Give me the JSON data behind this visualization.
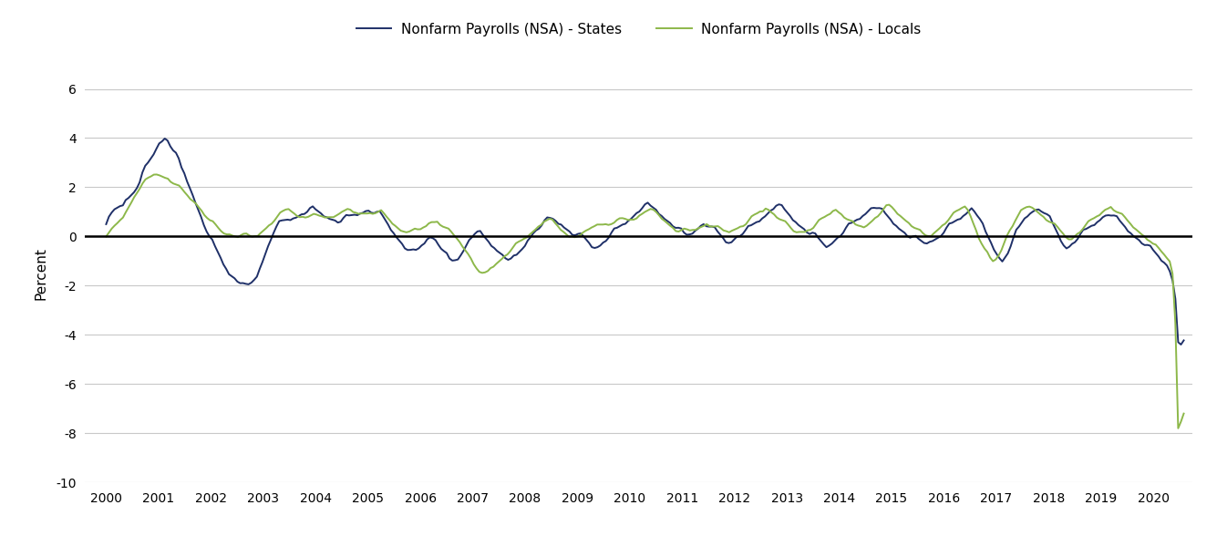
{
  "ylabel": "Percent",
  "legend_states": "Nonfarm Payrolls (NSA) - States",
  "legend_locals": "Nonfarm Payrolls (NSA) - Locals",
  "color_states": "#1f3068",
  "color_locals": "#8db84a",
  "ylim": [
    -10,
    7
  ],
  "yticks": [
    -10,
    -8,
    -6,
    -4,
    -2,
    0,
    2,
    4,
    6
  ],
  "background_color": "#ffffff",
  "grid_color": "#c8c8c8",
  "start_year": 2000.0,
  "end_year": 2020.58,
  "states_data": [
    0.5,
    0.7,
    0.8,
    1.0,
    1.1,
    1.2,
    1.3,
    1.5,
    1.6,
    1.7,
    1.8,
    2.0,
    2.2,
    2.5,
    2.7,
    2.9,
    3.1,
    3.3,
    3.6,
    3.8,
    3.9,
    4.0,
    3.9,
    3.7,
    3.5,
    3.3,
    3.0,
    2.7,
    2.5,
    2.2,
    2.0,
    1.7,
    1.4,
    1.1,
    0.8,
    0.5,
    0.2,
    -0.1,
    -0.3,
    -0.5,
    -0.7,
    -0.9,
    -1.1,
    -1.3,
    -1.5,
    -1.6,
    -1.7,
    -1.8,
    -1.9,
    -2.0,
    -2.1,
    -2.05,
    -1.95,
    -1.8,
    -1.6,
    -1.3,
    -1.0,
    -0.7,
    -0.4,
    -0.1,
    0.15,
    0.3,
    0.45,
    0.55,
    0.6,
    0.65,
    0.7,
    0.75,
    0.8,
    0.85,
    0.9,
    0.95,
    1.0,
    1.05,
    1.05,
    1.0,
    0.95,
    0.9,
    0.85,
    0.8,
    0.75,
    0.7,
    0.65,
    0.6,
    0.6,
    0.65,
    0.7,
    0.75,
    0.8,
    0.85,
    0.9,
    0.95,
    1.0,
    1.05,
    1.05,
    1.0,
    0.95,
    0.9,
    0.85,
    0.75,
    0.6,
    0.45,
    0.3,
    0.15,
    0.0,
    -0.15,
    -0.3,
    -0.45,
    -0.55,
    -0.65,
    -0.7,
    -0.65,
    -0.55,
    -0.4,
    -0.25,
    -0.1,
    0.0,
    -0.05,
    -0.15,
    -0.3,
    -0.5,
    -0.7,
    -0.85,
    -1.0,
    -1.05,
    -1.0,
    -0.9,
    -0.75,
    -0.55,
    -0.35,
    -0.15,
    0.0,
    0.1,
    0.1,
    0.05,
    -0.05,
    -0.15,
    -0.25,
    -0.35,
    -0.45,
    -0.55,
    -0.65,
    -0.75,
    -0.85,
    -0.95,
    -1.0,
    -0.95,
    -0.85,
    -0.7,
    -0.55,
    -0.35,
    -0.15,
    0.0,
    0.15,
    0.25,
    0.35,
    0.45,
    0.55,
    0.6,
    0.65,
    0.65,
    0.6,
    0.55,
    0.5,
    0.4,
    0.3,
    0.2,
    0.1,
    0.05,
    0.0,
    -0.05,
    -0.1,
    -0.2,
    -0.3,
    -0.4,
    -0.45,
    -0.4,
    -0.35,
    -0.25,
    -0.15,
    -0.05,
    0.05,
    0.15,
    0.25,
    0.35,
    0.45,
    0.55,
    0.65,
    0.75,
    0.85,
    0.95,
    1.05,
    1.15,
    1.2,
    1.2,
    1.15,
    1.1,
    1.05,
    0.95,
    0.85,
    0.75,
    0.65,
    0.55,
    0.45,
    0.35,
    0.25,
    0.15,
    0.05,
    0.0,
    0.05,
    0.15,
    0.25,
    0.35,
    0.45,
    0.5,
    0.45,
    0.4,
    0.3,
    0.2,
    0.1,
    0.0,
    -0.1,
    -0.2,
    -0.25,
    -0.2,
    -0.1,
    0.0,
    0.05,
    0.1,
    0.15,
    0.25,
    0.35,
    0.45,
    0.55,
    0.65,
    0.75,
    0.85,
    0.95,
    1.05,
    1.15,
    1.25,
    1.2,
    1.1,
    1.0,
    0.9,
    0.8,
    0.7,
    0.6,
    0.5,
    0.4,
    0.3,
    0.2,
    0.1,
    0.05,
    -0.05,
    -0.15,
    -0.25,
    -0.35,
    -0.4,
    -0.35,
    -0.25,
    -0.15,
    -0.05,
    0.05,
    0.15,
    0.25,
    0.35,
    0.45,
    0.55,
    0.65,
    0.75,
    0.85,
    0.95,
    1.05,
    1.15,
    1.2,
    1.15,
    1.05,
    0.95,
    0.85,
    0.75,
    0.65,
    0.55,
    0.45,
    0.35,
    0.25,
    0.15,
    0.05,
    -0.05,
    -0.1,
    -0.15,
    -0.2,
    -0.25,
    -0.3,
    -0.25,
    -0.2,
    -0.15,
    -0.1,
    -0.05,
    0.05,
    0.15,
    0.25,
    0.35,
    0.45,
    0.55,
    0.65,
    0.75,
    0.85,
    0.95,
    1.05,
    1.15,
    1.05,
    0.85,
    0.6,
    0.35,
    0.1,
    -0.1,
    -0.3,
    -0.5,
    -0.7,
    -0.85,
    -1.0,
    -0.85,
    -0.65,
    -0.4,
    -0.15,
    0.1,
    0.3,
    0.5,
    0.7,
    0.85,
    0.95,
    1.05,
    1.1,
    1.1,
    1.05,
    0.95,
    0.8,
    0.65,
    0.45,
    0.25,
    0.05,
    -0.15,
    -0.35,
    -0.45,
    -0.4,
    -0.3,
    -0.2,
    -0.1,
    0.0,
    0.1,
    0.2,
    0.3,
    0.4,
    0.5,
    0.6,
    0.7,
    0.8,
    0.85,
    0.9,
    0.85,
    0.75,
    0.65,
    0.55,
    0.45,
    0.35,
    0.25,
    0.15,
    0.05,
    -0.05,
    -0.15,
    -0.25,
    -0.35,
    -0.45,
    -0.55,
    -0.65,
    -0.75,
    -0.85,
    -0.95,
    -1.05,
    -1.15,
    -1.4,
    -1.8,
    -2.5,
    -4.3,
    -4.5,
    -4.4
  ],
  "locals_data": [
    0.0,
    0.1,
    0.2,
    0.35,
    0.5,
    0.65,
    0.8,
    1.0,
    1.2,
    1.4,
    1.6,
    1.8,
    1.95,
    2.1,
    2.2,
    2.3,
    2.4,
    2.5,
    2.55,
    2.5,
    2.45,
    2.4,
    2.35,
    2.25,
    2.15,
    2.05,
    1.95,
    1.85,
    1.75,
    1.65,
    1.55,
    1.45,
    1.35,
    1.2,
    1.05,
    0.9,
    0.75,
    0.6,
    0.5,
    0.4,
    0.3,
    0.2,
    0.15,
    0.1,
    0.1,
    0.05,
    0.0,
    0.0,
    0.05,
    0.05,
    0.0,
    -0.05,
    -0.05,
    0.0,
    0.05,
    0.15,
    0.25,
    0.35,
    0.45,
    0.55,
    0.65,
    0.75,
    0.85,
    0.95,
    1.05,
    1.1,
    1.05,
    0.95,
    0.85,
    0.8,
    0.8,
    0.8,
    0.8,
    0.8,
    0.8,
    0.8,
    0.8,
    0.8,
    0.8,
    0.8,
    0.8,
    0.8,
    0.85,
    0.95,
    1.0,
    1.0,
    1.0,
    1.0,
    0.95,
    0.95,
    0.95,
    0.95,
    0.95,
    0.95,
    0.95,
    0.95,
    0.95,
    0.95,
    0.95,
    0.85,
    0.75,
    0.65,
    0.55,
    0.45,
    0.35,
    0.25,
    0.2,
    0.2,
    0.2,
    0.2,
    0.2,
    0.2,
    0.25,
    0.35,
    0.45,
    0.55,
    0.6,
    0.6,
    0.6,
    0.5,
    0.4,
    0.3,
    0.2,
    0.1,
    0.0,
    -0.1,
    -0.2,
    -0.4,
    -0.55,
    -0.7,
    -0.9,
    -1.1,
    -1.3,
    -1.5,
    -1.6,
    -1.55,
    -1.45,
    -1.3,
    -1.2,
    -1.1,
    -1.0,
    -0.9,
    -0.8,
    -0.7,
    -0.6,
    -0.5,
    -0.4,
    -0.3,
    -0.2,
    -0.1,
    0.0,
    0.1,
    0.2,
    0.3,
    0.4,
    0.5,
    0.6,
    0.6,
    0.6,
    0.6,
    0.5,
    0.4,
    0.3,
    0.2,
    0.1,
    0.0,
    0.0,
    0.0,
    0.0,
    0.0,
    0.05,
    0.15,
    0.25,
    0.35,
    0.45,
    0.5,
    0.5,
    0.5,
    0.5,
    0.5,
    0.5,
    0.5,
    0.55,
    0.65,
    0.7,
    0.7,
    0.7,
    0.7,
    0.7,
    0.75,
    0.85,
    0.95,
    1.0,
    1.0,
    1.0,
    1.0,
    0.95,
    0.85,
    0.75,
    0.65,
    0.55,
    0.45,
    0.35,
    0.25,
    0.2,
    0.2,
    0.2,
    0.2,
    0.2,
    0.25,
    0.3,
    0.35,
    0.4,
    0.45,
    0.5,
    0.45,
    0.4,
    0.35,
    0.3,
    0.25,
    0.2,
    0.2,
    0.2,
    0.25,
    0.3,
    0.35,
    0.4,
    0.45,
    0.5,
    0.6,
    0.7,
    0.8,
    0.9,
    1.0,
    1.05,
    1.15,
    1.1,
    1.0,
    0.9,
    0.8,
    0.7,
    0.6,
    0.5,
    0.4,
    0.3,
    0.2,
    0.2,
    0.2,
    0.2,
    0.2,
    0.25,
    0.3,
    0.35,
    0.45,
    0.55,
    0.65,
    0.75,
    0.85,
    0.95,
    1.05,
    1.1,
    1.0,
    0.9,
    0.8,
    0.7,
    0.6,
    0.5,
    0.4,
    0.4,
    0.4,
    0.4,
    0.45,
    0.55,
    0.65,
    0.75,
    0.85,
    0.95,
    1.05,
    1.15,
    1.2,
    1.15,
    1.05,
    0.95,
    0.85,
    0.75,
    0.65,
    0.55,
    0.45,
    0.35,
    0.25,
    0.15,
    0.05,
    0.0,
    0.0,
    0.05,
    0.15,
    0.25,
    0.35,
    0.45,
    0.55,
    0.65,
    0.75,
    0.85,
    0.95,
    1.05,
    1.15,
    1.25,
    1.1,
    0.85,
    0.55,
    0.25,
    -0.05,
    -0.3,
    -0.55,
    -0.75,
    -0.95,
    -1.05,
    -0.95,
    -0.75,
    -0.55,
    -0.25,
    0.05,
    0.25,
    0.45,
    0.65,
    0.8,
    0.95,
    1.05,
    1.15,
    1.2,
    1.2,
    1.1,
    1.0,
    0.9,
    0.8,
    0.7,
    0.6,
    0.5,
    0.4,
    0.3,
    0.2,
    0.1,
    0.0,
    -0.1,
    -0.1,
    0.0,
    0.1,
    0.2,
    0.3,
    0.4,
    0.5,
    0.6,
    0.7,
    0.8,
    0.9,
    1.0,
    1.1,
    1.15,
    1.2,
    1.1,
    1.0,
    0.9,
    0.8,
    0.7,
    0.6,
    0.5,
    0.4,
    0.3,
    0.2,
    0.1,
    0.0,
    -0.1,
    -0.2,
    -0.35,
    -0.45,
    -0.55,
    -0.65,
    -0.75,
    -0.85,
    -1.0,
    -1.5,
    -3.5,
    -7.8,
    -7.5,
    -7.2
  ]
}
